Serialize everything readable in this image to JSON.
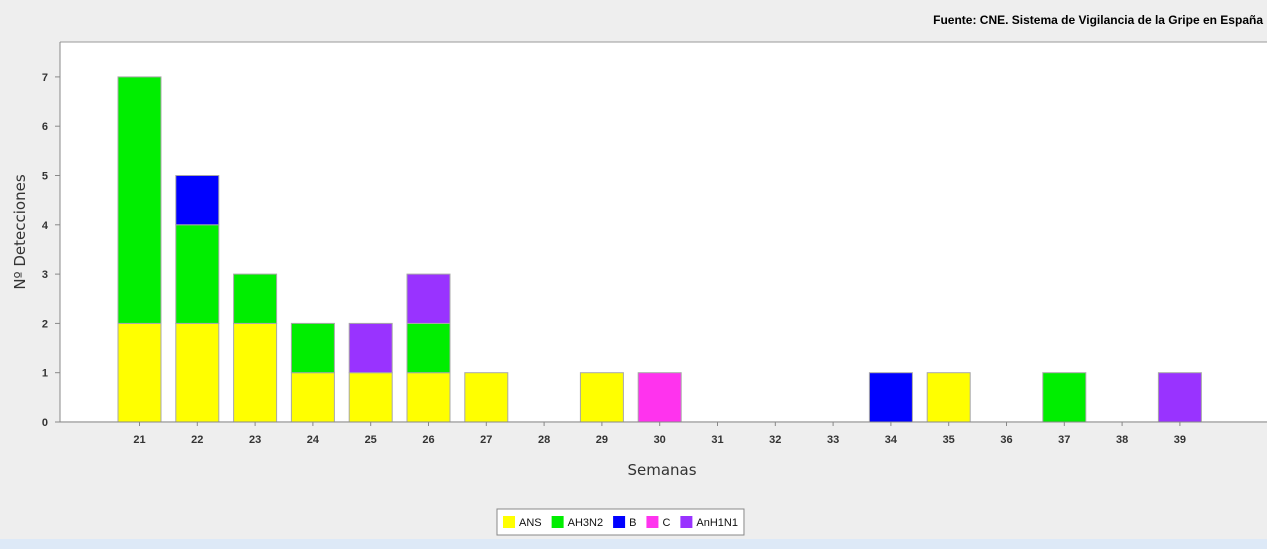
{
  "chart_data": {
    "type": "bar",
    "stacked": true,
    "source": "Fuente: CNE. Sistema de Vigilancia de la Gripe en España",
    "xlabel": "Semanas",
    "ylabel": "Nº Detecciones",
    "categories": [
      "21",
      "22",
      "23",
      "24",
      "25",
      "26",
      "27",
      "28",
      "29",
      "30",
      "31",
      "32",
      "33",
      "34",
      "35",
      "36",
      "37",
      "38",
      "39"
    ],
    "ylim": [
      0,
      7.7
    ],
    "yticks": [
      0,
      1,
      2,
      3,
      4,
      5,
      6,
      7
    ],
    "grid": false,
    "legend_position": "bottom-center",
    "series": [
      {
        "name": "ANS",
        "color": "#ffff00",
        "values": [
          2,
          2,
          2,
          1,
          1,
          1,
          1,
          0,
          1,
          0,
          0,
          0,
          0,
          0,
          1,
          0,
          0,
          0,
          0
        ]
      },
      {
        "name": "AH3N2",
        "color": "#00ee00",
        "values": [
          5,
          2,
          1,
          1,
          0,
          1,
          0,
          0,
          0,
          0,
          0,
          0,
          0,
          0,
          0,
          0,
          1,
          0,
          0
        ]
      },
      {
        "name": "B",
        "color": "#0000ff",
        "values": [
          0,
          1,
          0,
          0,
          0,
          0,
          0,
          0,
          0,
          0,
          0,
          0,
          0,
          1,
          0,
          0,
          0,
          0,
          0
        ]
      },
      {
        "name": "C",
        "color": "#ff33ee",
        "values": [
          0,
          0,
          0,
          0,
          0,
          0,
          0,
          0,
          0,
          1,
          0,
          0,
          0,
          0,
          0,
          0,
          0,
          0,
          0
        ]
      },
      {
        "name": "AnH1N1",
        "color": "#9933ff",
        "values": [
          0,
          0,
          0,
          0,
          1,
          1,
          0,
          0,
          0,
          0,
          0,
          0,
          0,
          0,
          0,
          0,
          0,
          0,
          1
        ]
      }
    ]
  }
}
